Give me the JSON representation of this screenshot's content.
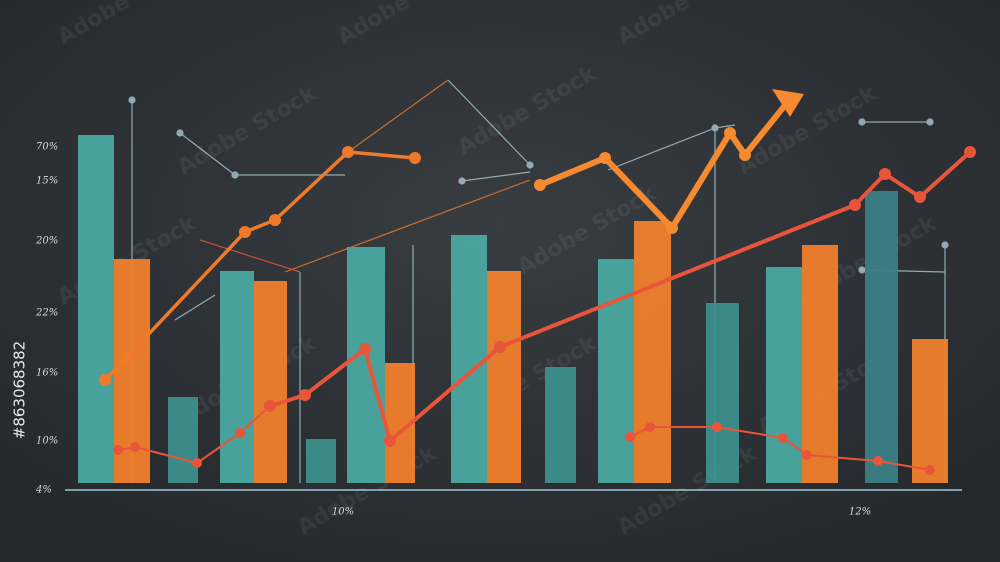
{
  "chart_data": {
    "type": "bar-line",
    "y_labels": [
      "70%",
      "15%",
      "20%",
      "22%",
      "16%",
      "10%",
      "4%"
    ],
    "x_labels": [
      "10%",
      "12%"
    ],
    "ylim": [
      0,
      100
    ],
    "xlim": [
      0,
      1000
    ],
    "bars": {
      "values": [
        87,
        56,
        21.5,
        53,
        50.5,
        11,
        59,
        30,
        62,
        53,
        29,
        56,
        65.5,
        45,
        54,
        59.5,
        73,
        36
      ],
      "colors": [
        "#4aa8a0",
        "#f07f2c",
        "#3d8f8c",
        "#4aa8a0",
        "#f07f2c",
        "#3d8f8c",
        "#4aa8a0",
        "#f07f2c",
        "#4aa8a0",
        "#f07f2c",
        "#3d8f8c",
        "#4aa8a0",
        "#f07f2c",
        "#3d8f8c",
        "#4aa8a0",
        "#f07f2c",
        "#3a7f85",
        "#f07f2c"
      ]
    },
    "series": [
      {
        "color": "#f07a2a",
        "x": [
          105,
          127,
          245,
          275,
          348,
          415
        ],
        "values": [
          25.75,
          31.5,
          62.75,
          65.75,
          82.75,
          81.25
        ]
      },
      {
        "color": "#f58a30",
        "x": [
          540,
          605,
          672,
          730,
          745,
          790
        ],
        "values": [
          74.5,
          81.25,
          63.75,
          87.5,
          82,
          96
        ]
      },
      {
        "color": "#e9553a",
        "x": [
          270,
          305,
          365,
          390,
          500,
          855,
          885,
          920,
          970
        ],
        "values": [
          19.25,
          22,
          33.5,
          10.5,
          34,
          69.5,
          77.25,
          71.5,
          82.75
        ]
      },
      {
        "color": "#e9553a",
        "x": [
          118,
          135,
          197,
          240,
          270
        ],
        "values": [
          8.25,
          9,
          5,
          12.5,
          19.25
        ]
      },
      {
        "color": "#e9553a",
        "x": [
          630,
          650,
          717,
          783,
          807,
          878,
          930
        ],
        "values": [
          11.5,
          14,
          14,
          11.25,
          7,
          5.5,
          3.25
        ]
      }
    ]
  },
  "watermark": "Adobe Stock",
  "stock_id": "#863068382"
}
